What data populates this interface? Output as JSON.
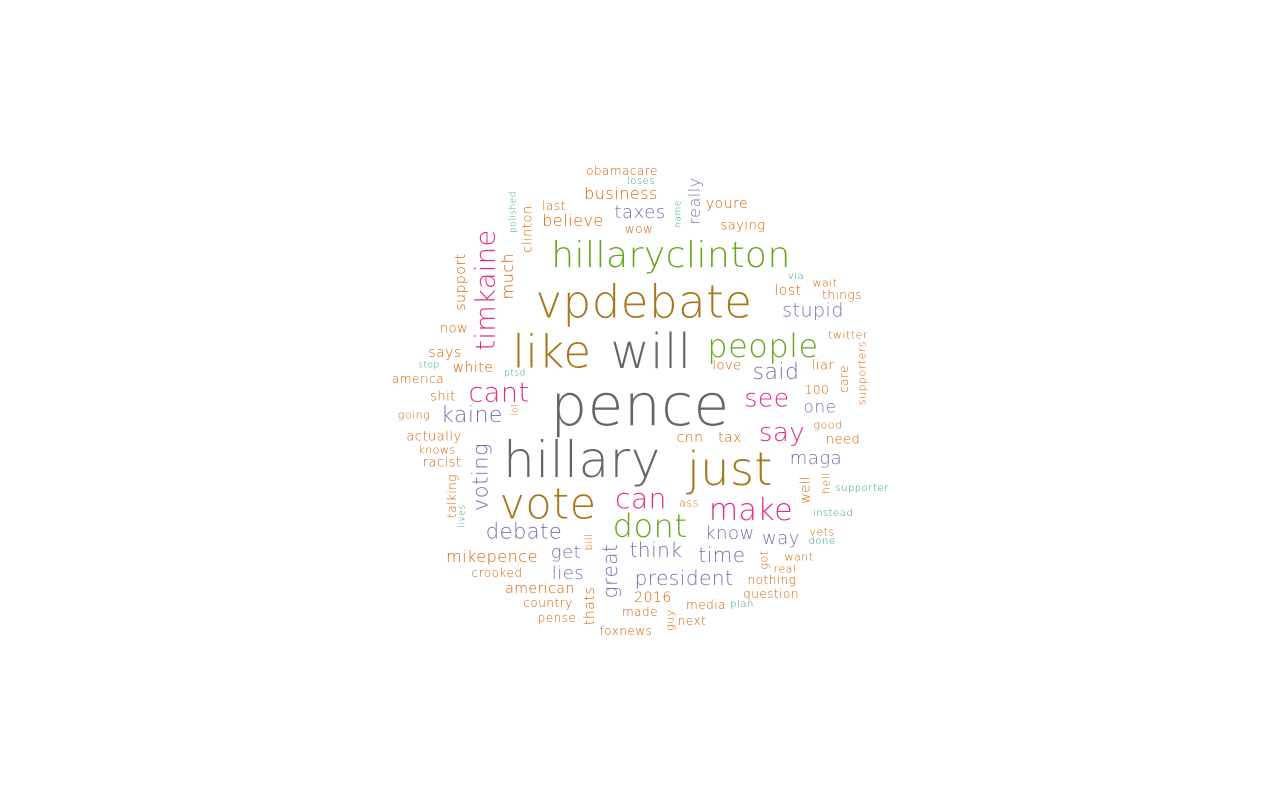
{
  "colors": {
    "gray": "#666666",
    "brown": "#a6761d",
    "green": "#66a61e",
    "magenta": "#e7298a",
    "purple": "#7570b3",
    "orange": "#d95f02",
    "teal": "#1b9e77"
  },
  "words": [
    {
      "text": "pence",
      "color": "gray"
    },
    {
      "text": "hillary",
      "color": "gray"
    },
    {
      "text": "will",
      "color": "gray"
    },
    {
      "text": "vpdebate",
      "color": "brown"
    },
    {
      "text": "like",
      "color": "brown"
    },
    {
      "text": "just",
      "color": "brown"
    },
    {
      "text": "vote",
      "color": "brown"
    },
    {
      "text": "hillaryclinton",
      "color": "green"
    },
    {
      "text": "people",
      "color": "green"
    },
    {
      "text": "dont",
      "color": "green"
    },
    {
      "text": "timkaine",
      "color": "magenta"
    },
    {
      "text": "cant",
      "color": "magenta"
    },
    {
      "text": "see",
      "color": "magenta"
    },
    {
      "text": "say",
      "color": "magenta"
    },
    {
      "text": "can",
      "color": "magenta"
    },
    {
      "text": "make",
      "color": "magenta"
    },
    {
      "text": "kaine",
      "color": "purple"
    },
    {
      "text": "said",
      "color": "purple"
    },
    {
      "text": "stupid",
      "color": "purple"
    },
    {
      "text": "one",
      "color": "purple"
    },
    {
      "text": "maga",
      "color": "purple"
    },
    {
      "text": "voting",
      "color": "purple"
    },
    {
      "text": "debate",
      "color": "purple"
    },
    {
      "text": "know",
      "color": "purple"
    },
    {
      "text": "way",
      "color": "purple"
    },
    {
      "text": "think",
      "color": "purple"
    },
    {
      "text": "time",
      "color": "purple"
    },
    {
      "text": "get",
      "color": "purple"
    },
    {
      "text": "lies",
      "color": "purple"
    },
    {
      "text": "great",
      "color": "purple"
    },
    {
      "text": "president",
      "color": "purple"
    },
    {
      "text": "taxes",
      "color": "purple"
    },
    {
      "text": "really",
      "color": "purple"
    },
    {
      "text": "obamacare",
      "color": "orange"
    },
    {
      "text": "loses",
      "color": "teal"
    },
    {
      "text": "business",
      "color": "orange"
    },
    {
      "text": "last",
      "color": "orange"
    },
    {
      "text": "polished",
      "color": "teal"
    },
    {
      "text": "clinton",
      "color": "orange"
    },
    {
      "text": "believe",
      "color": "orange"
    },
    {
      "text": "name",
      "color": "teal"
    },
    {
      "text": "youre",
      "color": "orange"
    },
    {
      "text": "wow",
      "color": "orange"
    },
    {
      "text": "saying",
      "color": "orange"
    },
    {
      "text": "much",
      "color": "orange"
    },
    {
      "text": "support",
      "color": "orange"
    },
    {
      "text": "via",
      "color": "teal"
    },
    {
      "text": "wait",
      "color": "orange"
    },
    {
      "text": "lost",
      "color": "orange"
    },
    {
      "text": "things",
      "color": "orange"
    },
    {
      "text": "now",
      "color": "orange"
    },
    {
      "text": "twitter",
      "color": "orange"
    },
    {
      "text": "says",
      "color": "orange"
    },
    {
      "text": "stop",
      "color": "teal"
    },
    {
      "text": "white",
      "color": "orange"
    },
    {
      "text": "ptsd",
      "color": "teal"
    },
    {
      "text": "love",
      "color": "orange"
    },
    {
      "text": "liar",
      "color": "orange"
    },
    {
      "text": "care",
      "color": "orange"
    },
    {
      "text": "supporters",
      "color": "orange"
    },
    {
      "text": "america",
      "color": "orange"
    },
    {
      "text": "shit",
      "color": "orange"
    },
    {
      "text": "100",
      "color": "orange"
    },
    {
      "text": "going",
      "color": "orange"
    },
    {
      "text": "lol",
      "color": "orange"
    },
    {
      "text": "good",
      "color": "orange"
    },
    {
      "text": "actually",
      "color": "orange"
    },
    {
      "text": "cnn",
      "color": "orange"
    },
    {
      "text": "tax",
      "color": "orange"
    },
    {
      "text": "need",
      "color": "orange"
    },
    {
      "text": "knows",
      "color": "orange"
    },
    {
      "text": "racist",
      "color": "orange"
    },
    {
      "text": "talking",
      "color": "orange"
    },
    {
      "text": "lives",
      "color": "teal"
    },
    {
      "text": "well",
      "color": "orange"
    },
    {
      "text": "hell",
      "color": "orange"
    },
    {
      "text": "supporter",
      "color": "teal"
    },
    {
      "text": "ass",
      "color": "orange"
    },
    {
      "text": "instead",
      "color": "teal"
    },
    {
      "text": "vets",
      "color": "orange"
    },
    {
      "text": "done",
      "color": "teal"
    },
    {
      "text": "mikepence",
      "color": "orange"
    },
    {
      "text": "bill",
      "color": "orange"
    },
    {
      "text": "got",
      "color": "orange"
    },
    {
      "text": "want",
      "color": "orange"
    },
    {
      "text": "real",
      "color": "orange"
    },
    {
      "text": "crooked",
      "color": "orange"
    },
    {
      "text": "nothing",
      "color": "orange"
    },
    {
      "text": "american",
      "color": "orange"
    },
    {
      "text": "question",
      "color": "orange"
    },
    {
      "text": "2016",
      "color": "orange"
    },
    {
      "text": "country",
      "color": "orange"
    },
    {
      "text": "thats",
      "color": "orange"
    },
    {
      "text": "media",
      "color": "orange"
    },
    {
      "text": "plan",
      "color": "teal"
    },
    {
      "text": "made",
      "color": "orange"
    },
    {
      "text": "pense",
      "color": "orange"
    },
    {
      "text": "guy",
      "color": "orange"
    },
    {
      "text": "next",
      "color": "orange"
    },
    {
      "text": "foxnews",
      "color": "orange"
    }
  ]
}
